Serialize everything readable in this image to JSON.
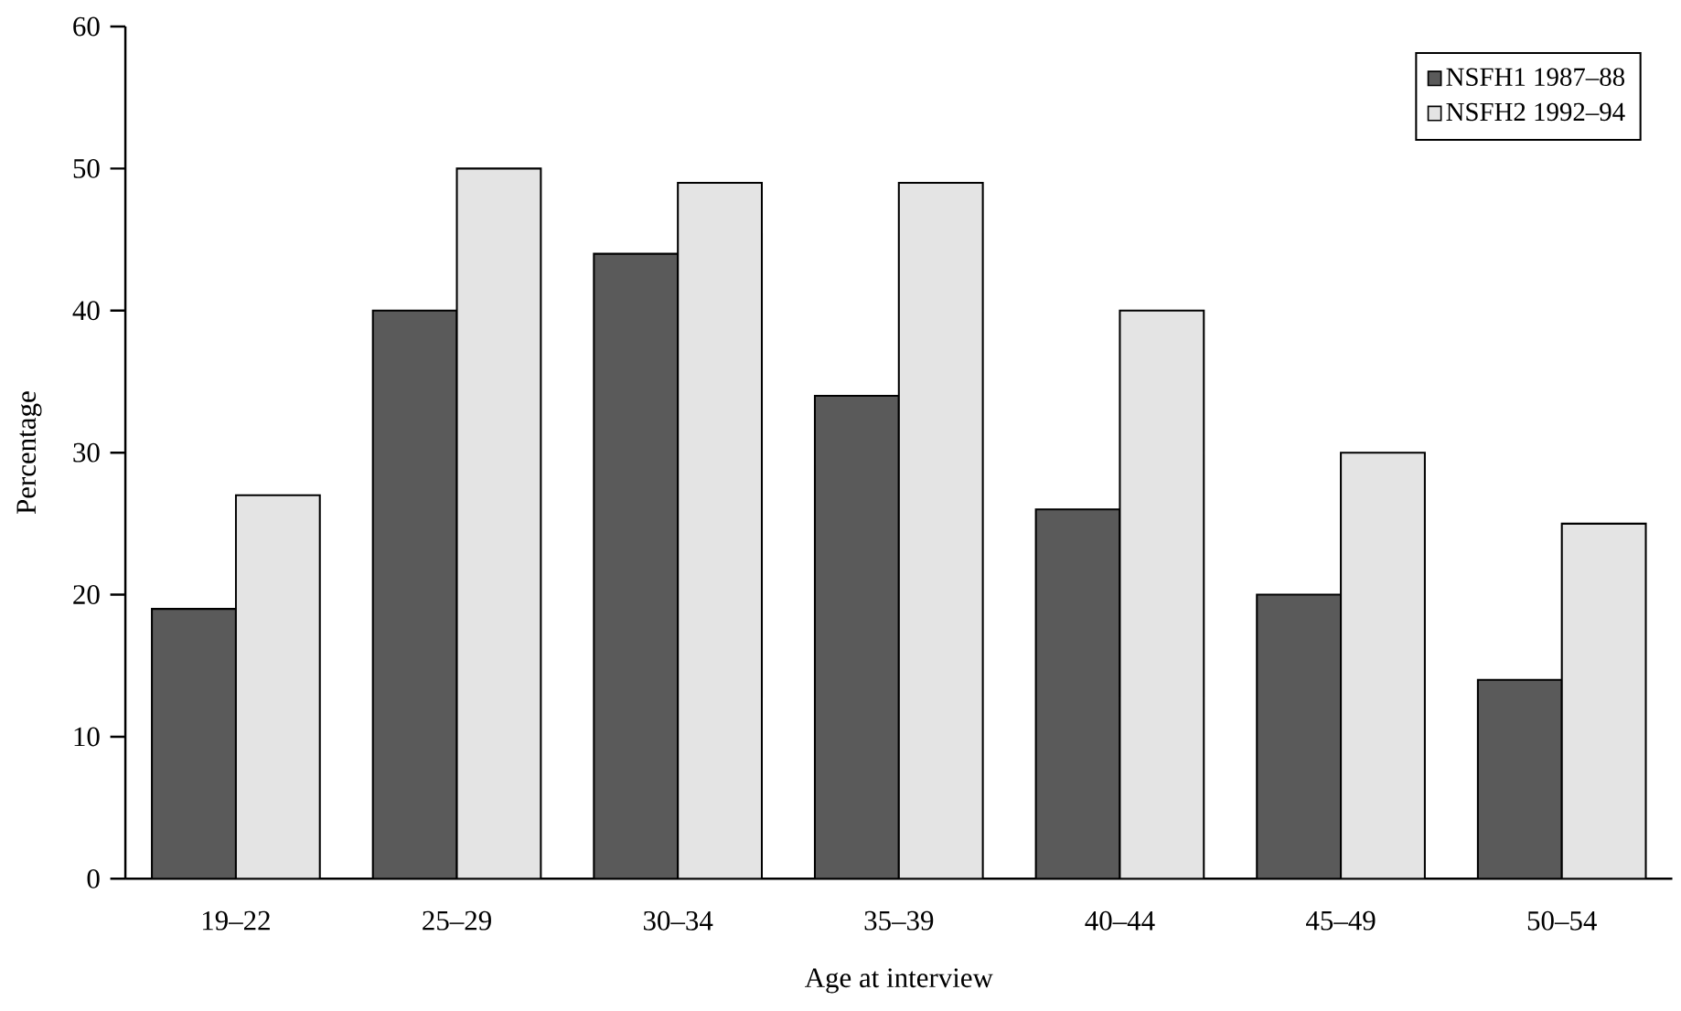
{
  "chart_data": {
    "type": "bar",
    "xlabel": "Age at interview",
    "ylabel": "Percentage",
    "categories": [
      "19–22",
      "25–29",
      "30–34",
      "35–39",
      "40–44",
      "45–49",
      "50–54"
    ],
    "series": [
      {
        "name": "NSFH1 1987–88",
        "color": "#5a5a5a",
        "values": [
          19,
          40,
          44,
          34,
          26,
          20,
          14
        ]
      },
      {
        "name": "NSFH2 1992–94",
        "color": "#e4e4e4",
        "values": [
          27,
          50,
          49,
          49,
          40,
          30,
          25
        ]
      }
    ],
    "ylim": [
      0,
      60
    ],
    "yticks": [
      0,
      10,
      20,
      30,
      40,
      50,
      60
    ],
    "grid": false,
    "legend": "top right"
  }
}
